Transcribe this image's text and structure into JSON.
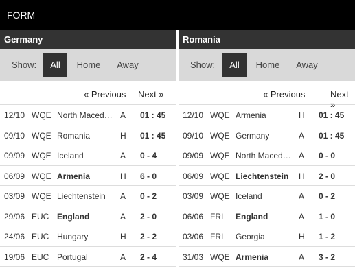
{
  "header": {
    "title": "FORM"
  },
  "tabs": {
    "all": "All",
    "home": "Home",
    "away": "Away",
    "show": "Show:"
  },
  "pager": {
    "prev": "« Previous",
    "next": "Next »"
  },
  "germany": {
    "name": "Germany",
    "rows": [
      {
        "date": "12/10",
        "comp": "WQE",
        "opp": "North Macedonia",
        "opp_bold": false,
        "ha": "A",
        "score": "01 : 45"
      },
      {
        "date": "09/10",
        "comp": "WQE",
        "opp": "Romania",
        "opp_bold": false,
        "ha": "H",
        "score": "01 : 45"
      },
      {
        "date": "09/09",
        "comp": "WQE",
        "opp": "Iceland",
        "opp_bold": false,
        "ha": "A",
        "score": "0 - 4"
      },
      {
        "date": "06/09",
        "comp": "WQE",
        "opp": "Armenia",
        "opp_bold": true,
        "ha": "H",
        "score": "6 - 0"
      },
      {
        "date": "03/09",
        "comp": "WQE",
        "opp": "Liechtenstein",
        "opp_bold": false,
        "ha": "A",
        "score": "0 - 2"
      },
      {
        "date": "29/06",
        "comp": "EUC",
        "opp": "England",
        "opp_bold": true,
        "ha": "A",
        "score": "2 - 0"
      },
      {
        "date": "24/06",
        "comp": "EUC",
        "opp": "Hungary",
        "opp_bold": false,
        "ha": "H",
        "score": "2 - 2"
      },
      {
        "date": "19/06",
        "comp": "EUC",
        "opp": "Portugal",
        "opp_bold": false,
        "ha": "A",
        "score": "2 - 4"
      }
    ]
  },
  "romania": {
    "name": "Romania",
    "rows": [
      {
        "date": "12/10",
        "comp": "WQE",
        "opp": "Armenia",
        "opp_bold": false,
        "ha": "H",
        "score": "01 : 45"
      },
      {
        "date": "09/10",
        "comp": "WQE",
        "opp": "Germany",
        "opp_bold": false,
        "ha": "A",
        "score": "01 : 45"
      },
      {
        "date": "09/09",
        "comp": "WQE",
        "opp": "North Macedonia",
        "opp_bold": false,
        "ha": "A",
        "score": "0 - 0"
      },
      {
        "date": "06/09",
        "comp": "WQE",
        "opp": "Liechtenstein",
        "opp_bold": true,
        "ha": "H",
        "score": "2 - 0"
      },
      {
        "date": "03/09",
        "comp": "WQE",
        "opp": "Iceland",
        "opp_bold": false,
        "ha": "A",
        "score": "0 - 2"
      },
      {
        "date": "06/06",
        "comp": "FRI",
        "opp": "England",
        "opp_bold": true,
        "ha": "A",
        "score": "1 - 0"
      },
      {
        "date": "03/06",
        "comp": "FRI",
        "opp": "Georgia",
        "opp_bold": false,
        "ha": "H",
        "score": "1 - 2"
      },
      {
        "date": "31/03",
        "comp": "WQE",
        "opp": "Armenia",
        "opp_bold": true,
        "ha": "A",
        "score": "3 - 2"
      }
    ]
  }
}
